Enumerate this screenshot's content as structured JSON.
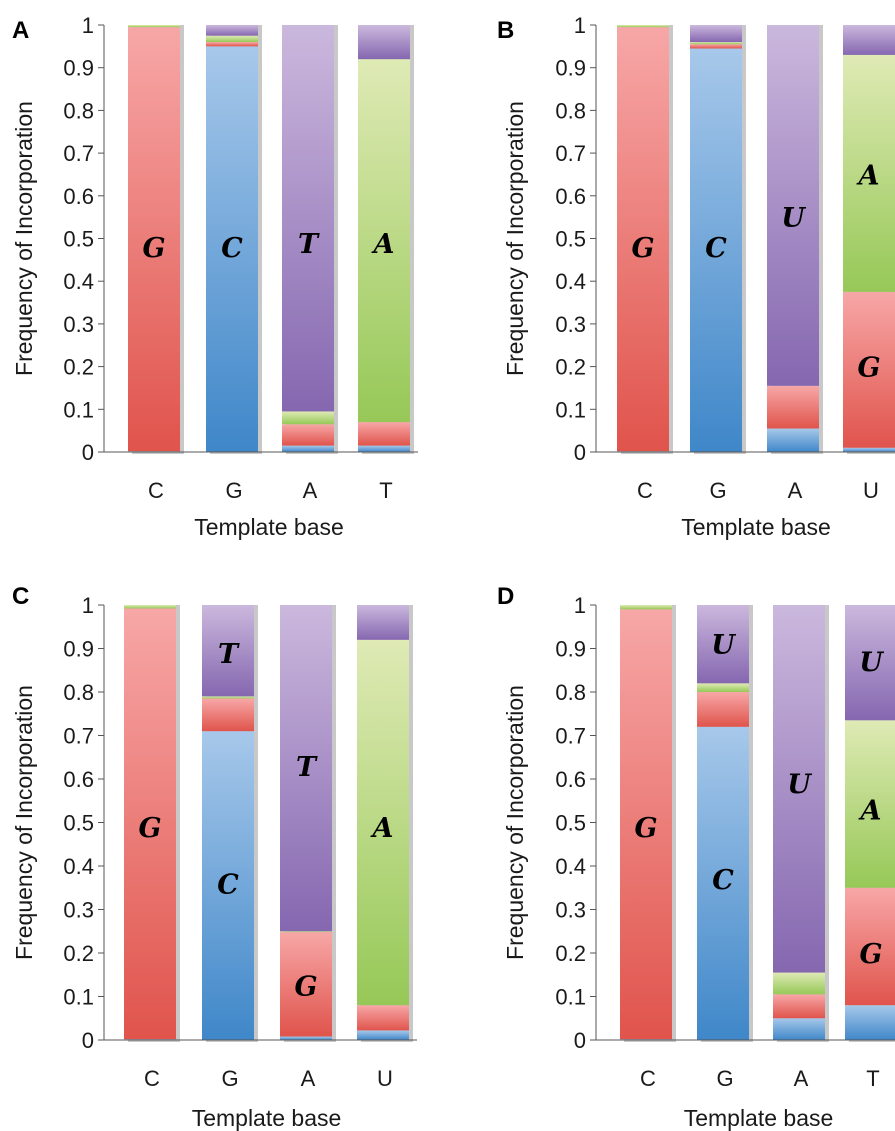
{
  "colors": {
    "red_top": "#f7a7a7",
    "red_bottom": "#e0544c",
    "blue_top": "#a7c8ea",
    "blue_bottom": "#3f87c9",
    "purple_top": "#cbb8dd",
    "purple_bottom": "#8567b0",
    "green_top": "#dfeab5",
    "green_bottom": "#96c857",
    "bar_shadow": "#c8c8c8"
  },
  "chart_data": [
    {
      "panel": "A",
      "type": "bar",
      "stacked": true,
      "categories": [
        "C",
        "G",
        "A",
        "T"
      ],
      "xlabel": "Template base",
      "ylabel": "Frequency of Incorporation",
      "ylim": [
        0,
        1
      ],
      "yticks": [
        "0",
        "0.1",
        "0.2",
        "0.3",
        "0.4",
        "0.5",
        "0.6",
        "0.7",
        "0.8",
        "0.9",
        "1"
      ],
      "segment_order": [
        "blue",
        "red",
        "green",
        "purple"
      ],
      "stacks": [
        {
          "blue": 0.002,
          "red": 0.993,
          "green": 0.005,
          "purple": 0.0
        },
        {
          "blue": 0.95,
          "red": 0.01,
          "green": 0.015,
          "purple": 0.025
        },
        {
          "blue": 0.015,
          "red": 0.05,
          "green": 0.03,
          "purple": 0.905
        },
        {
          "blue": 0.015,
          "red": 0.055,
          "green": 0.85,
          "purple": 0.08
        }
      ],
      "labels": [
        {
          "text": "G",
          "bar": 0,
          "y": 0.48
        },
        {
          "text": "C",
          "bar": 1,
          "y": 0.48
        },
        {
          "text": "T",
          "bar": 2,
          "y": 0.49
        },
        {
          "text": "A",
          "bar": 3,
          "y": 0.49
        }
      ]
    },
    {
      "panel": "B",
      "type": "bar",
      "stacked": true,
      "categories": [
        "C",
        "G",
        "A",
        "U"
      ],
      "xlabel": "Template base",
      "ylabel": "Frequency of Incorporation",
      "ylim": [
        0,
        1
      ],
      "yticks": [
        "0",
        "0.1",
        "0.2",
        "0.3",
        "0.4",
        "0.5",
        "0.6",
        "0.7",
        "0.8",
        "0.9",
        "1"
      ],
      "segment_order": [
        "blue",
        "red",
        "green",
        "purple"
      ],
      "stacks": [
        {
          "blue": 0.002,
          "red": 0.993,
          "green": 0.005,
          "purple": 0.0
        },
        {
          "blue": 0.945,
          "red": 0.01,
          "green": 0.005,
          "purple": 0.04
        },
        {
          "blue": 0.055,
          "red": 0.1,
          "green": 0.0,
          "purple": 0.845
        },
        {
          "blue": 0.01,
          "red": 0.365,
          "green": 0.555,
          "purple": 0.07
        }
      ],
      "labels": [
        {
          "text": "G",
          "bar": 0,
          "y": 0.48
        },
        {
          "text": "C",
          "bar": 1,
          "y": 0.48
        },
        {
          "text": "U",
          "bar": 2,
          "y": 0.55
        },
        {
          "text": "A",
          "bar": 3,
          "y": 0.65
        },
        {
          "text": "G",
          "bar": 3,
          "y": 0.2
        }
      ]
    },
    {
      "panel": "C",
      "type": "bar",
      "stacked": true,
      "categories": [
        "C",
        "G",
        "A",
        "U"
      ],
      "xlabel": "Template base",
      "ylabel": "Frequency of Incorporation",
      "ylim": [
        0,
        1
      ],
      "yticks": [
        "0",
        "0.1",
        "0.2",
        "0.3",
        "0.4",
        "0.5",
        "0.6",
        "0.7",
        "0.8",
        "0.9",
        "1"
      ],
      "segment_order": [
        "blue",
        "red",
        "green",
        "purple"
      ],
      "stacks": [
        {
          "blue": 0.002,
          "red": 0.99,
          "green": 0.008,
          "purple": 0.0
        },
        {
          "blue": 0.71,
          "red": 0.075,
          "green": 0.005,
          "purple": 0.21
        },
        {
          "blue": 0.008,
          "red": 0.24,
          "green": 0.002,
          "purple": 0.75
        },
        {
          "blue": 0.022,
          "red": 0.058,
          "green": 0.84,
          "purple": 0.08
        }
      ],
      "labels": [
        {
          "text": "G",
          "bar": 0,
          "y": 0.49
        },
        {
          "text": "T",
          "bar": 1,
          "y": 0.89
        },
        {
          "text": "C",
          "bar": 1,
          "y": 0.36
        },
        {
          "text": "T",
          "bar": 2,
          "y": 0.63
        },
        {
          "text": "G",
          "bar": 2,
          "y": 0.125
        },
        {
          "text": "A",
          "bar": 3,
          "y": 0.49
        }
      ]
    },
    {
      "panel": "D",
      "type": "bar",
      "stacked": true,
      "categories": [
        "C",
        "G",
        "A",
        "T"
      ],
      "xlabel": "Template base",
      "ylabel": "Frequency of Incorporation",
      "ylim": [
        0,
        1
      ],
      "yticks": [
        "0",
        "0.1",
        "0.2",
        "0.3",
        "0.4",
        "0.5",
        "0.6",
        "0.7",
        "0.8",
        "0.9",
        "1"
      ],
      "segment_order": [
        "blue",
        "red",
        "green",
        "purple"
      ],
      "stacks": [
        {
          "blue": 0.002,
          "red": 0.988,
          "green": 0.01,
          "purple": 0.0
        },
        {
          "blue": 0.72,
          "red": 0.08,
          "green": 0.02,
          "purple": 0.18
        },
        {
          "blue": 0.05,
          "red": 0.055,
          "green": 0.05,
          "purple": 0.845
        },
        {
          "blue": 0.08,
          "red": 0.27,
          "green": 0.385,
          "purple": 0.265
        }
      ],
      "labels": [
        {
          "text": "G",
          "bar": 0,
          "y": 0.49
        },
        {
          "text": "U",
          "bar": 1,
          "y": 0.91
        },
        {
          "text": "C",
          "bar": 1,
          "y": 0.37
        },
        {
          "text": "U",
          "bar": 2,
          "y": 0.59
        },
        {
          "text": "U",
          "bar": 3,
          "y": 0.87
        },
        {
          "text": "A",
          "bar": 3,
          "y": 0.53
        },
        {
          "text": "G",
          "bar": 3,
          "y": 0.2
        }
      ]
    }
  ]
}
